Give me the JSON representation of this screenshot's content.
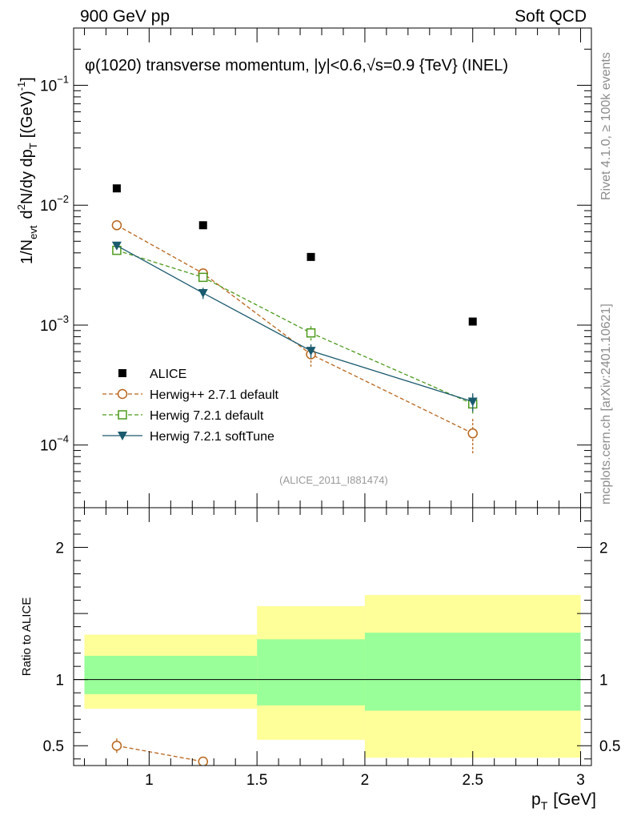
{
  "header": {
    "left": "900 GeV pp",
    "right": "Soft QCD"
  },
  "side_labels": {
    "rivet": "Rivet 4.1.0, ≥ 100k events",
    "mcplots": "mcplots.cern.ch [arXiv:2401.10621]"
  },
  "chart_data": [
    {
      "type": "scatter",
      "panel": "main",
      "title": "φ(1020) transverse momentum, |y|<0.6,√s=0.9 {TeV} (INEL)",
      "analysis_id": "(ALICE_2011_I881474)",
      "ylabel": "1/N_evt d²N/dy dp_T [(GeV)⁻¹]",
      "ylabel_parts": {
        "lead": "1/N",
        "sub1": "evt",
        "mid": "d",
        "sup1": "2",
        "mid2": "N/dy dp",
        "sub2": "T",
        "tail": "[(GeV)",
        "sup2": "-1",
        "close": "]"
      },
      "yscale": "log",
      "ylim": [
        3e-05,
        0.3
      ],
      "xlim": [
        0.65,
        3.05
      ],
      "y_ticks": [
        {
          "value": 0.1,
          "base": "10",
          "exp": "−1"
        },
        {
          "value": 0.01,
          "base": "10",
          "exp": "−2"
        },
        {
          "value": 0.001,
          "base": "10",
          "exp": "−3"
        },
        {
          "value": 0.0001,
          "base": "10",
          "exp": "−4"
        }
      ],
      "legend_position": "lower-left",
      "series": [
        {
          "name": "ALICE",
          "marker": "filled-square",
          "color": "#000000",
          "line": "none",
          "x": [
            0.85,
            1.25,
            1.75,
            2.5
          ],
          "y": [
            0.0138,
            0.0068,
            0.0037,
            0.00107
          ],
          "yerr": [
            0,
            0,
            0,
            0
          ]
        },
        {
          "name": "Herwig++ 2.7.1 default",
          "marker": "open-circle",
          "color": "#b8641a",
          "line": "dashed",
          "x": [
            0.85,
            1.25,
            1.75,
            2.5
          ],
          "y": [
            0.0068,
            0.0027,
            0.00057,
            0.000125
          ],
          "yerr": [
            0.0002,
            0.00025,
            0.00012,
            4e-05
          ]
        },
        {
          "name": "Herwig 7.2.1 default",
          "marker": "open-square",
          "color": "#4c9a1c",
          "line": "dashed",
          "x": [
            0.85,
            1.25,
            1.75,
            2.5
          ],
          "y": [
            0.0042,
            0.0025,
            0.00086,
            0.00022
          ],
          "yerr": [
            0.0002,
            0.0002,
            0.00012,
            4e-05
          ]
        },
        {
          "name": "Herwig 7.2.1 softTune",
          "marker": "filled-triangle-down",
          "color": "#1a5a6e",
          "line": "solid",
          "x": [
            0.85,
            1.25,
            1.75,
            2.5
          ],
          "y": [
            0.0046,
            0.00185,
            0.00061,
            0.00023
          ],
          "yerr": [
            0.0002,
            0.0002,
            8e-05,
            4e-05
          ]
        }
      ]
    },
    {
      "type": "bar",
      "panel": "ratio",
      "ylabel": "Ratio to ALICE",
      "xlabel": "p_T [GeV]",
      "xlabel_parts": {
        "p": "p",
        "sub": "T",
        "rest": "[GeV]"
      },
      "xlim": [
        0.65,
        3.05
      ],
      "ylim": [
        0.35,
        2.3
      ],
      "x_ticks": [
        "1",
        "1.5",
        "2",
        "2.5",
        "3"
      ],
      "x_tick_values": [
        1,
        1.5,
        2,
        2.5,
        3
      ],
      "y_ticks": [
        "0.5",
        "1",
        "2"
      ],
      "y_tick_values": [
        0.5,
        1,
        2
      ],
      "bands": [
        {
          "x_low": 0.7,
          "x_high": 1.5,
          "yellow": [
            0.78,
            1.34
          ],
          "green": [
            0.89,
            1.18
          ]
        },
        {
          "x_low": 1.5,
          "x_high": 2.0,
          "yellow": [
            0.545,
            1.555
          ],
          "green": [
            0.805,
            1.305
          ]
        },
        {
          "x_low": 2.0,
          "x_high": 3.0,
          "yellow": [
            0.41,
            1.64
          ],
          "green": [
            0.765,
            1.355
          ]
        }
      ],
      "band_colors": {
        "yellow": "#ffff99",
        "green": "#99ff99"
      },
      "series": [
        {
          "name": "Herwig++ 2.7.1 default",
          "marker": "open-circle",
          "color": "#b8641a",
          "line": "dashed",
          "x": [
            0.85,
            1.25
          ],
          "y": [
            0.5,
            0.38
          ],
          "yerr": [
            0.055,
            0
          ]
        }
      ]
    }
  ]
}
